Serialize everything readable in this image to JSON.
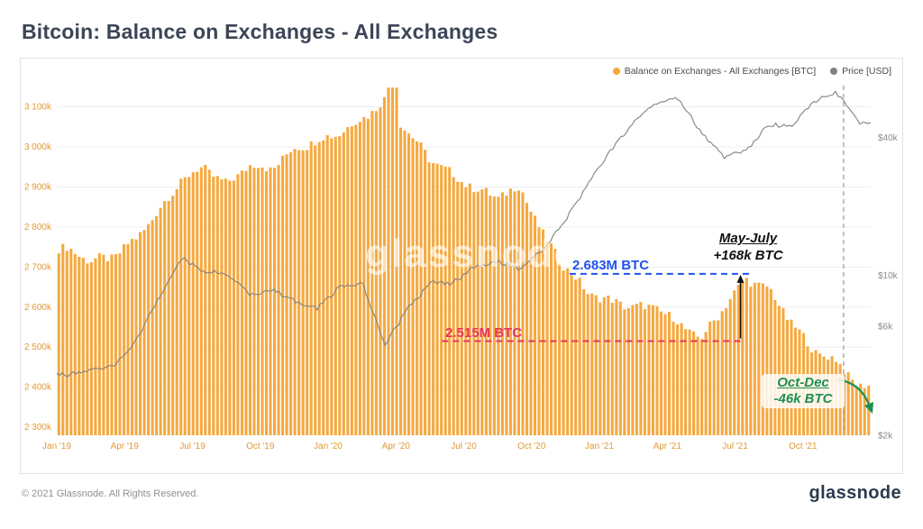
{
  "page": {
    "title": "Bitcoin: Balance on Exchanges - All Exchanges",
    "watermark": "glassnode",
    "footer": {
      "copyright": "© 2021 Glassnode. All Rights Reserved.",
      "brand": "glassnode"
    }
  },
  "legend": [
    {
      "label": "Balance on Exchanges - All Exchanges [BTC]",
      "color": "#F5A93F"
    },
    {
      "label": "Price [USD]",
      "color": "#828282"
    }
  ],
  "colors": {
    "title": "#3C4557",
    "left_axis_labels": "#E09A35",
    "right_axis_labels": "#8A8A8A",
    "x_axis_labels": "#E09A35",
    "grid": "#EDEDED",
    "vline": "#9A9A9A"
  },
  "chart_data": {
    "type": "bar+line",
    "title": "Bitcoin: Balance on Exchanges - All Exchanges",
    "x_range": [
      2019.0,
      2022.0
    ],
    "x_ticks": [
      {
        "label": "Jan '19",
        "t": 2019.0
      },
      {
        "label": "Apr '19",
        "t": 2019.25
      },
      {
        "label": "Jul '19",
        "t": 2019.5
      },
      {
        "label": "Oct '19",
        "t": 2019.75
      },
      {
        "label": "Jan '20",
        "t": 2020.0
      },
      {
        "label": "Apr '20",
        "t": 2020.25
      },
      {
        "label": "Jul '20",
        "t": 2020.5
      },
      {
        "label": "Oct '20",
        "t": 2020.75
      },
      {
        "label": "Jan '21",
        "t": 2021.0
      },
      {
        "label": "Apr '21",
        "t": 2021.25
      },
      {
        "label": "Jul '21",
        "t": 2021.5
      },
      {
        "label": "Oct '21",
        "t": 2021.75
      }
    ],
    "left_axis": {
      "unit": "BTC",
      "min": 2280000,
      "max": 3180000,
      "ticks": [
        {
          "label": "2 300k",
          "value": 2300000
        },
        {
          "label": "2 400k",
          "value": 2400000
        },
        {
          "label": "2 500k",
          "value": 2500000
        },
        {
          "label": "2 600k",
          "value": 2600000
        },
        {
          "label": "2 700k",
          "value": 2700000
        },
        {
          "label": "2 800k",
          "value": 2800000
        },
        {
          "label": "2 900k",
          "value": 2900000
        },
        {
          "label": "3 000k",
          "value": 3000000
        },
        {
          "label": "3 100k",
          "value": 3100000
        }
      ]
    },
    "right_axis": {
      "unit": "USD",
      "scale": "log",
      "ticks": [
        {
          "label": "$2k",
          "value": 2000
        },
        {
          "label": "$6k",
          "value": 6000
        },
        {
          "label": "$10k",
          "value": 10000
        },
        {
          "label": "$40k",
          "value": 40000
        }
      ]
    },
    "series": [
      {
        "name": "Balance on Exchanges - All Exchanges [BTC]",
        "type": "bar",
        "axis": "left",
        "color": "#F5A93F",
        "unit": "million BTC, monthly estimates Jan 2019 - Dec 2021",
        "values": [
          2.745,
          2.715,
          2.725,
          2.77,
          2.84,
          2.915,
          2.95,
          2.905,
          2.955,
          2.945,
          2.995,
          3.015,
          3.035,
          3.07,
          3.115,
          3.04,
          2.97,
          2.93,
          2.895,
          2.875,
          2.9,
          2.78,
          2.7,
          2.635,
          2.615,
          2.6,
          2.6,
          2.56,
          2.52,
          2.6,
          2.67,
          2.645,
          2.56,
          2.49,
          2.465,
          2.4
        ],
        "spike": {
          "t": 2020.24,
          "value": 3.148
        }
      },
      {
        "name": "Price [USD]",
        "type": "line",
        "axis": "right",
        "color": "#828282",
        "unit": "USD, monthly estimates Jan 2019 - Dec 2021",
        "values": [
          3700,
          3850,
          4000,
          5200,
          7900,
          12000,
          10500,
          10300,
          8300,
          8700,
          7800,
          7200,
          8900,
          9400,
          5000,
          7100,
          9300,
          9300,
          10900,
          11600,
          10700,
          13000,
          17500,
          25000,
          35000,
          47000,
          56000,
          60000,
          42000,
          33000,
          35000,
          46000,
          45000,
          58000,
          63000,
          46000
        ]
      }
    ]
  },
  "annotations": {
    "level_high": {
      "label": "2.683M BTC",
      "value": 2.683,
      "color": "#2052F0",
      "span": [
        2020.89,
        2021.56
      ]
    },
    "level_low": {
      "label": "2.515M BTC",
      "value": 2.515,
      "color": "#EA3360",
      "span": [
        2020.42,
        2021.53
      ]
    },
    "may_july": {
      "line1": "May-July",
      "line2": "+168k BTC",
      "color": "#111111",
      "arrow_t": 2021.52
    },
    "oct_dec": {
      "line1": "Oct-Dec",
      "line2": "-46k BTC",
      "color": "#1F8F50"
    },
    "vline_t": 2021.9
  }
}
